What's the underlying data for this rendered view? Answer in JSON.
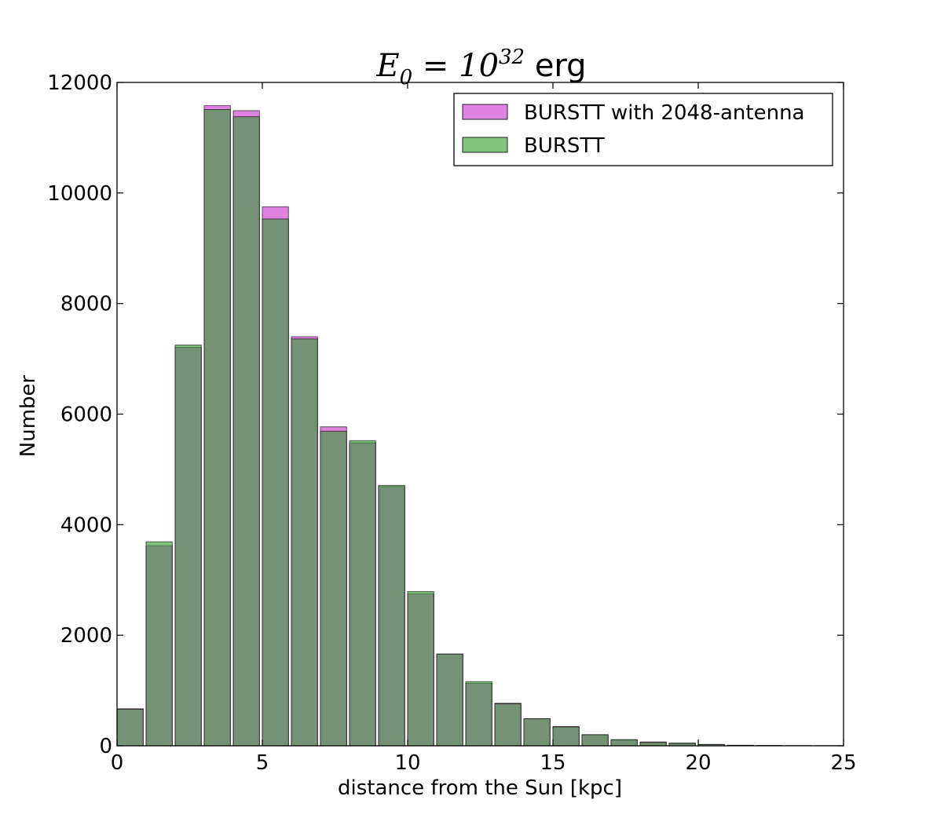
{
  "chart_data": {
    "type": "bar",
    "title": {
      "math_base": "E",
      "math_sub": "0",
      "math_eq": " = 10",
      "math_sup": "32",
      "suffix": " erg"
    },
    "xlabel": "distance from the Sun [kpc]",
    "ylabel": "Number",
    "xlim": [
      0,
      25
    ],
    "ylim": [
      0,
      12000
    ],
    "xticks": [
      0,
      5,
      10,
      15,
      20,
      25
    ],
    "yticks": [
      0,
      2000,
      4000,
      6000,
      8000,
      10000,
      12000
    ],
    "grid": false,
    "legend_position": "top-right",
    "bin_width": 1,
    "bar_width": 0.9,
    "bin_starts": [
      0,
      1,
      2,
      3,
      4,
      5,
      6,
      7,
      8,
      9,
      10,
      11,
      12,
      13,
      14,
      15,
      16,
      17,
      18,
      19,
      20,
      21,
      22,
      23,
      24
    ],
    "series": [
      {
        "name": "BURSTT with 2048-antenna",
        "color": "#d040d0",
        "alpha": 0.65,
        "values": [
          670,
          3620,
          7210,
          11580,
          11490,
          9750,
          7400,
          5770,
          5480,
          4690,
          2750,
          1660,
          1130,
          770,
          490,
          350,
          200,
          110,
          70,
          50,
          25,
          10,
          5,
          3,
          2
        ]
      },
      {
        "name": "BURSTT",
        "color": "#2e9c2e",
        "alpha": 0.6,
        "values": [
          660,
          3690,
          7250,
          11510,
          11380,
          9530,
          7360,
          5690,
          5520,
          4710,
          2790,
          1660,
          1160,
          760,
          490,
          340,
          200,
          110,
          60,
          45,
          22,
          8,
          4,
          2,
          1
        ]
      }
    ]
  }
}
